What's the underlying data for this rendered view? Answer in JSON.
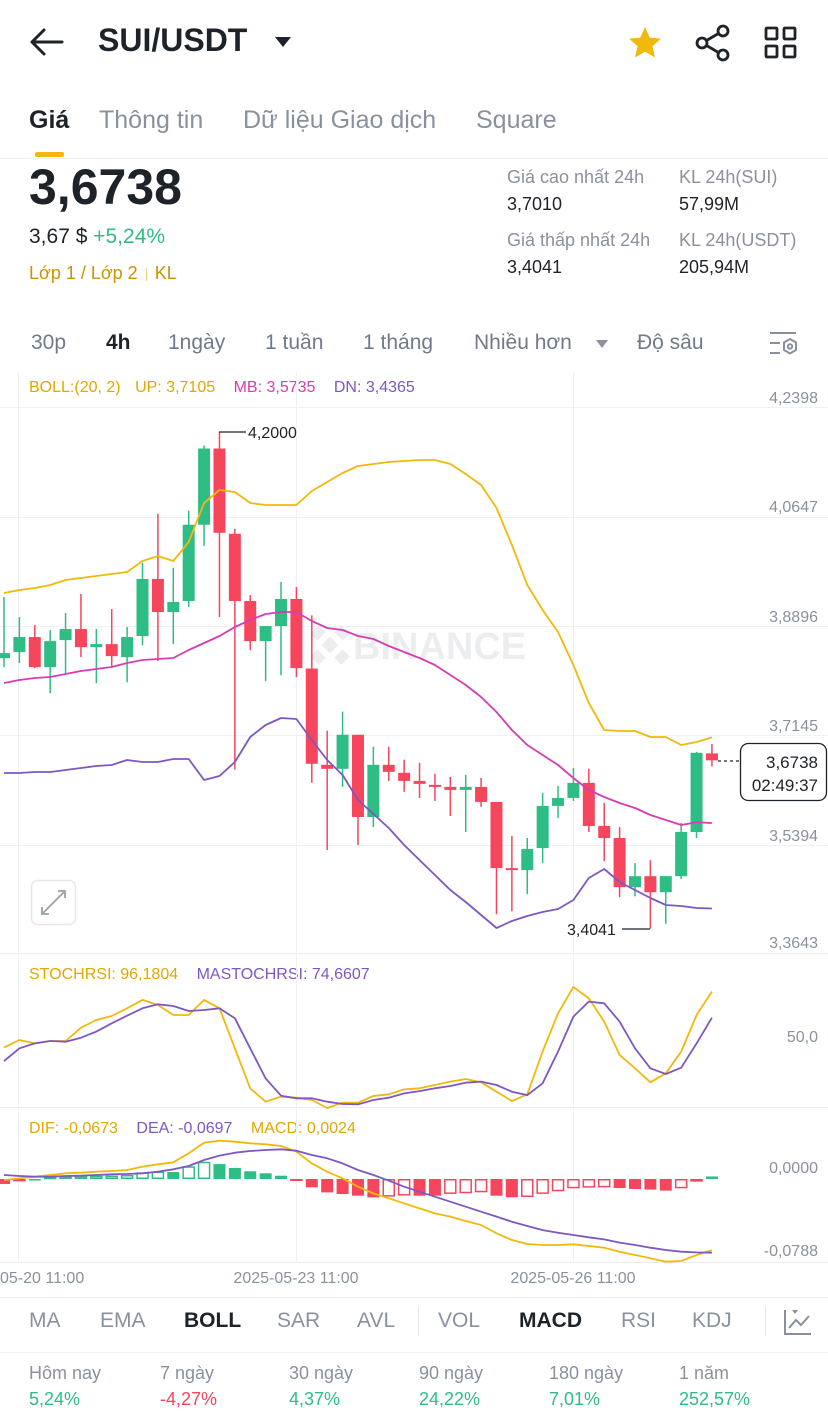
{
  "header": {
    "pair": "SUI/USDT",
    "icons": [
      "back-arrow-icon",
      "caret-down-icon",
      "star-icon",
      "share-icon",
      "grid-icon"
    ],
    "favorite": true
  },
  "tabs": [
    {
      "label": "Giá",
      "active": true
    },
    {
      "label": "Thông tin"
    },
    {
      "label": "Dữ liệu Giao dịch"
    },
    {
      "label": "Square"
    }
  ],
  "ticker": {
    "price": "3,6738",
    "usd_price": "3,67 $",
    "change": "+5,24%",
    "tags": [
      "Lớp 1 / Lớp 2",
      "KL"
    ],
    "stats": [
      {
        "label": "Giá cao nhất 24h",
        "value": "3,7010"
      },
      {
        "label": "KL 24h(SUI)",
        "value": "57,99M"
      },
      {
        "label": "Giá thấp nhất 24h",
        "value": "3,4041"
      },
      {
        "label": "KL 24h(USDT)",
        "value": "205,94M"
      }
    ]
  },
  "timeframes": [
    {
      "label": "30p"
    },
    {
      "label": "4h",
      "active": true
    },
    {
      "label": "1ngày"
    },
    {
      "label": "1 tuần"
    },
    {
      "label": "1 tháng"
    },
    {
      "label": "Nhiều hơn"
    },
    {
      "label": "Độ sâu"
    }
  ],
  "colors": {
    "up": "#2EBD85",
    "down": "#F6465D",
    "boll_up": "#F0B90B",
    "boll_mb": "#D63DB4",
    "boll_dn": "#7E57C2",
    "accent": "#F0B90B"
  },
  "chart_data": [
    {
      "type": "candlestick",
      "interval": "4h",
      "legend": {
        "boll": "BOLL:(20, 2)",
        "up": "UP: 3,7105",
        "mb": "MB: 3,5735",
        "dn": "DN: 3,4365"
      },
      "y_ticks": [
        "4,2398",
        "4,0647",
        "3,8896",
        "3,7145",
        "3,5394",
        "3,3643"
      ],
      "ylim": [
        3.3643,
        4.2398
      ],
      "x_ticks": [
        "05-20 11:00",
        "2025-05-23 11:00",
        "2025-05-26 11:00"
      ],
      "watermark": "BINANCE",
      "annotations": {
        "high": "4,2000",
        "low": "3,4041"
      },
      "last_price": {
        "value": "3,6738",
        "countdown": "02:49:37"
      },
      "ohlc": [
        [
          3.8375,
          3.9355,
          3.8231,
          3.8456
        ],
        [
          3.8472,
          3.9034,
          3.8295,
          3.8713
        ],
        [
          3.8713,
          3.8905,
          3.8215,
          3.8231
        ],
        [
          3.8231,
          3.8825,
          3.7813,
          3.8648
        ],
        [
          3.8664,
          3.9098,
          3.8134,
          3.8841
        ],
        [
          3.8841,
          3.9403,
          3.8391,
          3.8552
        ],
        [
          3.8552,
          3.8841,
          3.7974,
          3.86
        ],
        [
          3.86,
          3.9162,
          3.8231,
          3.8407
        ],
        [
          3.8391,
          3.8873,
          3.799,
          3.8713
        ],
        [
          3.8729,
          3.9901,
          3.8584,
          3.9644
        ],
        [
          3.9644,
          4.0688,
          3.8327,
          3.9114
        ],
        [
          3.9114,
          3.9821,
          3.86,
          3.9275
        ],
        [
          3.9291,
          4.0737,
          3.9195,
          4.0512
        ],
        [
          4.0512,
          4.1781,
          4.0174,
          4.1733
        ],
        [
          4.1733,
          4.2,
          3.9034,
          4.0383
        ],
        [
          4.0367,
          4.0448,
          3.6592,
          3.9291
        ],
        [
          3.9291,
          3.9387,
          3.8504,
          3.8648
        ],
        [
          3.8648,
          3.8889,
          3.8006,
          3.8889
        ],
        [
          3.8889,
          3.9596,
          3.8102,
          3.9323
        ],
        [
          3.9323,
          3.9516,
          3.807,
          3.8215
        ],
        [
          3.8209,
          3.906,
          3.6377,
          3.6683
        ],
        [
          3.6666,
          3.7213,
          3.5301,
          3.6602
        ],
        [
          3.6602,
          3.7518,
          3.6313,
          3.7148
        ],
        [
          3.7148,
          3.7148,
          3.5381,
          3.5831
        ],
        [
          3.5831,
          3.6956,
          3.567,
          3.6666
        ],
        [
          3.6666,
          3.6956,
          3.6409,
          3.6554
        ],
        [
          3.6538,
          3.6747,
          3.6233,
          3.6409
        ],
        [
          3.6409,
          3.6699,
          3.6136,
          3.6361
        ],
        [
          3.6345,
          3.6522,
          3.6088,
          3.6313
        ],
        [
          3.6313,
          3.6474,
          3.5847,
          3.6265
        ],
        [
          3.6265,
          3.6506,
          3.559,
          3.6313
        ],
        [
          3.6313,
          3.6458,
          3.5992,
          3.6072
        ],
        [
          3.6072,
          3.6072,
          3.4273,
          3.5012
        ],
        [
          3.5012,
          3.5526,
          3.4321,
          3.498
        ],
        [
          3.498,
          3.5494,
          3.4594,
          3.5317
        ],
        [
          3.5333,
          3.6217,
          3.5092,
          3.6008
        ],
        [
          3.6008,
          3.6329,
          3.5815,
          3.6136
        ],
        [
          3.6136,
          3.6618,
          3.6088,
          3.6377
        ],
        [
          3.6377,
          3.6602,
          3.559,
          3.5687
        ],
        [
          3.5687,
          3.6056,
          3.5124,
          3.5494
        ],
        [
          3.5494,
          3.567,
          3.4546,
          3.4707
        ],
        [
          3.4707,
          3.5092,
          3.4562,
          3.4883
        ],
        [
          3.4883,
          3.514,
          3.4041,
          3.4626
        ],
        [
          3.4626,
          3.4883,
          3.412,
          3.4883
        ],
        [
          3.4883,
          3.5736,
          3.4835,
          3.559
        ],
        [
          3.559,
          3.6875,
          3.5494,
          3.6859
        ],
        [
          3.685,
          3.7,
          3.664,
          3.6738
        ]
      ],
      "boll_up": [
        3.9419,
        3.9467,
        3.9499,
        3.9547,
        3.9627,
        3.9659,
        3.9691,
        3.9723,
        3.9755,
        3.9931,
        4.0011,
        3.9931,
        4.0236,
        4.086,
        4.1069,
        4.1036,
        4.086,
        4.0828,
        4.0828,
        4.0828,
        4.1052,
        4.1197,
        4.1341,
        4.1453,
        4.1485,
        4.1517,
        4.1533,
        4.1549,
        4.1549,
        4.1485,
        4.1325,
        4.1149,
        4.078,
        4.0188,
        3.9547,
        3.9146,
        3.8794,
        3.8265,
        3.7657,
        3.7224,
        3.7208,
        3.7208,
        3.7112,
        3.7112,
        3.6984,
        3.7032,
        3.7105
      ],
      "boll_mb": [
        3.7977,
        3.8025,
        3.8057,
        3.8073,
        3.8121,
        3.8169,
        3.8201,
        3.8233,
        3.8297,
        3.8345,
        3.8361,
        3.8377,
        3.8506,
        3.8618,
        3.873,
        3.8874,
        3.8986,
        3.9082,
        3.9114,
        3.9114,
        3.897,
        3.8858,
        3.8826,
        3.873,
        3.8682,
        3.857,
        3.8474,
        3.8377,
        3.8265,
        3.8105,
        3.7945,
        3.7753,
        3.7513,
        3.7224,
        3.6984,
        3.6824,
        3.6664,
        3.6455,
        3.6263,
        3.6151,
        3.6055,
        3.5975,
        3.5863,
        3.5783,
        3.5702,
        3.5745,
        3.5735
      ],
      "boll_dn": [
        3.6535,
        3.6535,
        3.6551,
        3.6551,
        3.6583,
        3.6616,
        3.6648,
        3.6664,
        3.6744,
        3.6712,
        3.6712,
        3.676,
        3.676,
        3.6423,
        3.6487,
        3.6712,
        3.7112,
        3.7304,
        3.7416,
        3.74,
        3.7064,
        3.6744,
        3.6503,
        3.6103,
        3.5879,
        3.5654,
        3.5382,
        3.5142,
        3.4902,
        3.4661,
        3.4469,
        3.4261,
        3.4053,
        3.4165,
        3.4245,
        3.4309,
        3.4357,
        3.4501,
        3.4854,
        3.4998,
        3.4789,
        3.4661,
        3.4533,
        3.4421,
        3.4405,
        3.4373,
        3.4365
      ]
    },
    {
      "type": "line",
      "legend": {
        "stoch": "STOCHRSI: 96,1804",
        "ma": "MASTOCHRSI: 74,6607"
      },
      "y_ticks": [
        "50,0"
      ],
      "ylim": [
        0,
        100
      ],
      "stochrsi": [
        49.9,
        56.2,
        53.4,
        55.4,
        55.4,
        66.4,
        72.7,
        76.0,
        82.4,
        89.3,
        85.1,
        76.9,
        76.9,
        89.3,
        82.4,
        49.3,
        16.3,
        5.2,
        9.4,
        8.5,
        6.6,
        0,
        4.4,
        4.4,
        9.9,
        11.3,
        15.4,
        16.3,
        19.0,
        21.8,
        24.0,
        21.2,
        13.5,
        5.8,
        11.3,
        46.6,
        78.2,
        100,
        90.6,
        71.4,
        43.8,
        32.8,
        21.2,
        28.7,
        46.6,
        76.9,
        96.18
      ],
      "mastochrsi": [
        38.8,
        49.3,
        53.4,
        55.4,
        54.8,
        58.1,
        63.1,
        70.0,
        76.3,
        82.4,
        85.7,
        84.3,
        80.2,
        81.0,
        82.4,
        74.1,
        49.3,
        24.5,
        10.2,
        8.0,
        8.0,
        5.2,
        3.3,
        3.0,
        6.6,
        8.5,
        12.1,
        14.0,
        16.3,
        18.2,
        20.9,
        21.8,
        19.0,
        13.5,
        10.7,
        20.4,
        46.6,
        75.5,
        87.9,
        86.5,
        71.4,
        49.3,
        32.8,
        28.1,
        33.3,
        53.4,
        74.66
      ]
    },
    {
      "type": "bar+line",
      "legend": {
        "dif": "DIF: -0,0673",
        "dea": "DEA: -0,0697",
        "macd": "MACD: 0,0024"
      },
      "y_ticks": [
        "0,0000",
        "-0,0788"
      ],
      "dif": [
        -0.0009,
        0.0006,
        0.0022,
        0.0038,
        0.0054,
        0.006,
        0.0069,
        0.0076,
        0.0085,
        0.0117,
        0.0139,
        0.0158,
        0.0243,
        0.0343,
        0.0362,
        0.0353,
        0.0338,
        0.0328,
        0.0312,
        0.0258,
        0.0148,
        0.0069,
        0.0006,
        -0.0073,
        -0.0136,
        -0.0183,
        -0.023,
        -0.0278,
        -0.0325,
        -0.0356,
        -0.0397,
        -0.0435,
        -0.0514,
        -0.0577,
        -0.0615,
        -0.0624,
        -0.0624,
        -0.0618,
        -0.0634,
        -0.065,
        -0.0688,
        -0.0719,
        -0.075,
        -0.0782,
        -0.0776,
        -0.0719,
        -0.0673
      ],
      "dea": [
        0.0038,
        0.0028,
        0.0022,
        0.0022,
        0.0028,
        0.0031,
        0.0038,
        0.0044,
        0.0047,
        0.0054,
        0.0069,
        0.0092,
        0.0123,
        0.018,
        0.0221,
        0.0249,
        0.0265,
        0.0274,
        0.0281,
        0.0268,
        0.0227,
        0.0196,
        0.0148,
        0.0085,
        0.0038,
        -0.0016,
        -0.0073,
        -0.012,
        -0.0167,
        -0.0215,
        -0.0262,
        -0.0309,
        -0.0356,
        -0.0404,
        -0.0445,
        -0.0483,
        -0.0508,
        -0.053,
        -0.0552,
        -0.0571,
        -0.0602,
        -0.0624,
        -0.065,
        -0.0672,
        -0.0688,
        -0.0694,
        -0.0697
      ]
    }
  ],
  "indicators": {
    "main": [
      {
        "label": "MA"
      },
      {
        "label": "EMA"
      },
      {
        "label": "BOLL",
        "active": true
      },
      {
        "label": "SAR"
      },
      {
        "label": "AVL"
      }
    ],
    "sub": [
      {
        "label": "VOL"
      },
      {
        "label": "MACD",
        "active": true
      },
      {
        "label": "RSI"
      },
      {
        "label": "KDJ"
      }
    ]
  },
  "performance": [
    {
      "label": "Hôm nay",
      "value": "5,24%",
      "dir": "up"
    },
    {
      "label": "7 ngày",
      "value": "-4,27%",
      "dir": "down"
    },
    {
      "label": "30 ngày",
      "value": "4,37%",
      "dir": "up"
    },
    {
      "label": "90 ngày",
      "value": "24,22%",
      "dir": "up"
    },
    {
      "label": "180 ngày",
      "value": "7,01%",
      "dir": "up"
    },
    {
      "label": "1 năm",
      "value": "252,57%",
      "dir": "up"
    }
  ]
}
